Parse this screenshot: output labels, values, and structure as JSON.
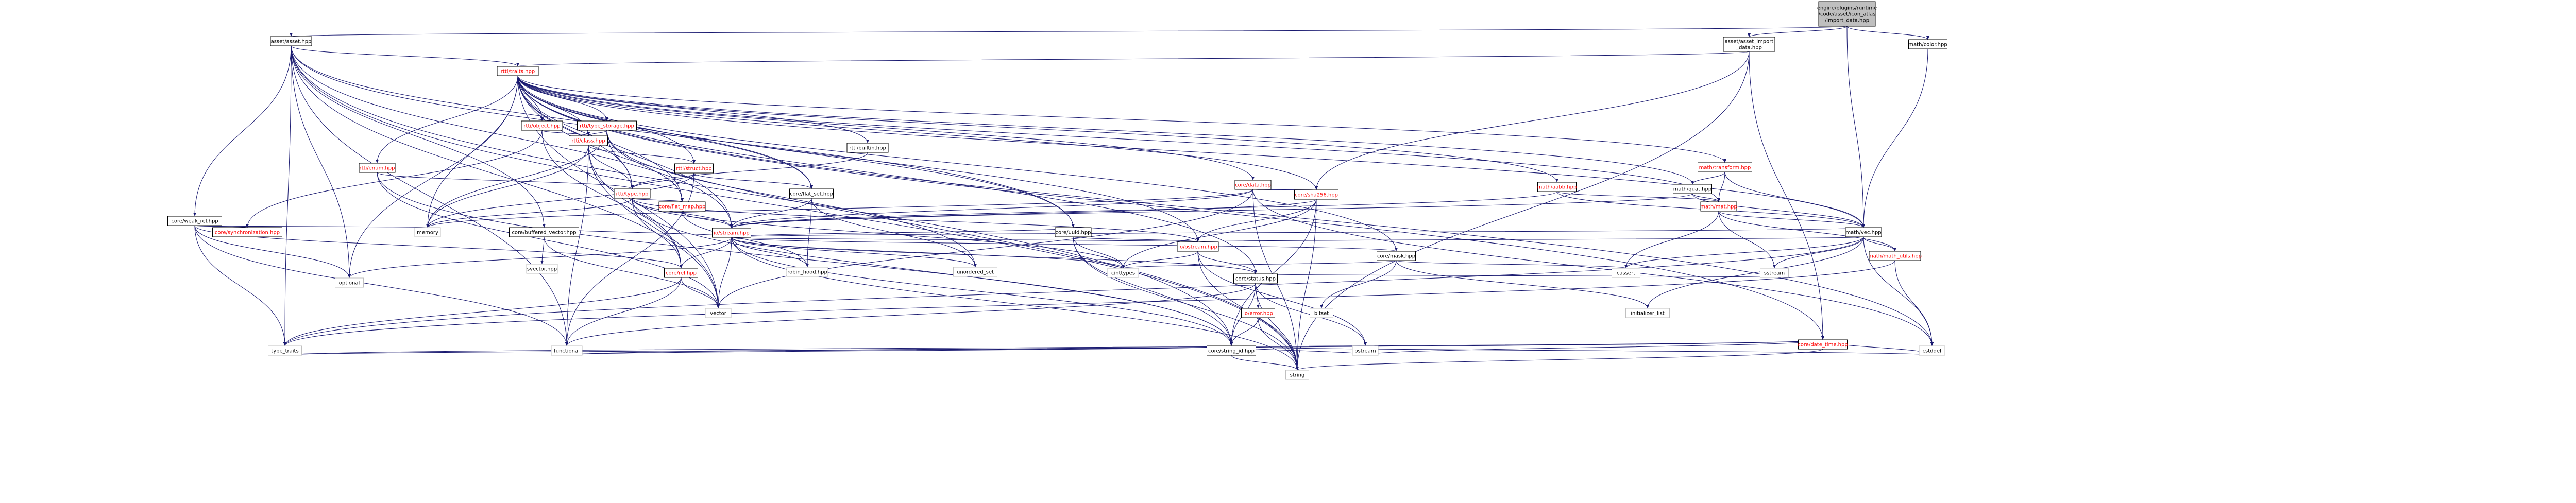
{
  "diagram": {
    "colors": {
      "root_fill": "#bfbfbf",
      "node_fill": "#ffffff",
      "border": "#000000",
      "light_border": "#bfbfbf",
      "edge": "#191970",
      "text": "#000000",
      "link_text": "#ff0000"
    },
    "nodes": [
      {
        "id": "root",
        "lines": [
          "engine/plugins/runtime",
          "/code/asset/icon_atlas",
          "/import_data.hpp"
        ],
        "kind": "root"
      },
      {
        "id": "asset_hpp",
        "lines": [
          "asset/asset.hpp"
        ],
        "kind": "normal"
      },
      {
        "id": "asset_import",
        "lines": [
          "asset/asset_import",
          "_data.hpp"
        ],
        "kind": "normal"
      },
      {
        "id": "math_color",
        "lines": [
          "math/color.hpp"
        ],
        "kind": "normal"
      },
      {
        "id": "rtti_traits",
        "lines": [
          "rtti/traits.hpp"
        ],
        "kind": "red"
      },
      {
        "id": "rtti_object",
        "lines": [
          "rtti/object.hpp"
        ],
        "kind": "red"
      },
      {
        "id": "rtti_type_storage",
        "lines": [
          "rtti/type_storage.hpp"
        ],
        "kind": "red"
      },
      {
        "id": "rtti_class",
        "lines": [
          "rtti/class.hpp"
        ],
        "kind": "red"
      },
      {
        "id": "rtti_builtin",
        "lines": [
          "rtti/builtin.hpp"
        ],
        "kind": "normal"
      },
      {
        "id": "rtti_enum",
        "lines": [
          "rtti/enum.hpp"
        ],
        "kind": "red"
      },
      {
        "id": "rtti_struct",
        "lines": [
          "rtti/struct.hpp"
        ],
        "kind": "red"
      },
      {
        "id": "rtti_type",
        "lines": [
          "rtti/type.hpp"
        ],
        "kind": "red"
      },
      {
        "id": "core_weak_ref",
        "lines": [
          "core/weak_ref.hpp"
        ],
        "kind": "normal"
      },
      {
        "id": "core_sync",
        "lines": [
          "core/synchronization.hpp"
        ],
        "kind": "red"
      },
      {
        "id": "core_buffered_vector",
        "lines": [
          "core/buffered_vector.hpp"
        ],
        "kind": "normal"
      },
      {
        "id": "core_flat_set",
        "lines": [
          "core/flat_set.hpp"
        ],
        "kind": "normal"
      },
      {
        "id": "core_flat_map",
        "lines": [
          "core/flat_map.hpp"
        ],
        "kind": "red"
      },
      {
        "id": "math_vec",
        "lines": [
          "math/vec.hpp"
        ],
        "kind": "normal"
      },
      {
        "id": "math_mat",
        "lines": [
          "math/mat.hpp"
        ],
        "kind": "red"
      },
      {
        "id": "math_quat",
        "lines": [
          "math/quat.hpp"
        ],
        "kind": "normal"
      },
      {
        "id": "math_transform",
        "lines": [
          "math/transform.hpp"
        ],
        "kind": "red"
      },
      {
        "id": "math_aabb",
        "lines": [
          "math/aabb.hpp"
        ],
        "kind": "red"
      },
      {
        "id": "core_data",
        "lines": [
          "core/data.hpp"
        ],
        "kind": "red"
      },
      {
        "id": "core_sha256",
        "lines": [
          "core/sha256.hpp"
        ],
        "kind": "red"
      },
      {
        "id": "core_uuid",
        "lines": [
          "core/uuid.hpp"
        ],
        "kind": "normal"
      },
      {
        "id": "io_stream",
        "lines": [
          "io/stream.hpp"
        ],
        "kind": "red"
      },
      {
        "id": "io_ostream",
        "lines": [
          "io/ostream.hpp"
        ],
        "kind": "red"
      },
      {
        "id": "core_ref",
        "lines": [
          "core/ref.hpp"
        ],
        "kind": "red"
      },
      {
        "id": "core_mask",
        "lines": [
          "core/mask.hpp"
        ],
        "kind": "normal"
      },
      {
        "id": "core_status",
        "lines": [
          "core/status.hpp"
        ],
        "kind": "normal"
      },
      {
        "id": "io_error",
        "lines": [
          "io/error.hpp"
        ],
        "kind": "red"
      },
      {
        "id": "core_string_id",
        "lines": [
          "core/string_id.hpp"
        ],
        "kind": "normal"
      },
      {
        "id": "core_date_time",
        "lines": [
          "core/date_time.hpp"
        ],
        "kind": "red"
      },
      {
        "id": "math_utils",
        "lines": [
          "math/math_utils.hpp"
        ],
        "kind": "red"
      },
      {
        "id": "std_memory",
        "lines": [
          "memory"
        ],
        "kind": "light"
      },
      {
        "id": "std_optional",
        "lines": [
          "optional"
        ],
        "kind": "light"
      },
      {
        "id": "std_svector",
        "lines": [
          "svector.hpp"
        ],
        "kind": "light"
      },
      {
        "id": "std_robin_hood",
        "lines": [
          "robin_hood.hpp"
        ],
        "kind": "light"
      },
      {
        "id": "std_unordered_set",
        "lines": [
          "unordered_set"
        ],
        "kind": "light"
      },
      {
        "id": "std_cinttypes",
        "lines": [
          "cinttypes"
        ],
        "kind": "light"
      },
      {
        "id": "std_vector",
        "lines": [
          "vector"
        ],
        "kind": "light"
      },
      {
        "id": "std_bitset",
        "lines": [
          "bitset"
        ],
        "kind": "light"
      },
      {
        "id": "std_cassert",
        "lines": [
          "cassert"
        ],
        "kind": "light"
      },
      {
        "id": "std_initializer_list",
        "lines": [
          "initializer_list"
        ],
        "kind": "light"
      },
      {
        "id": "std_sstream",
        "lines": [
          "sstream"
        ],
        "kind": "light"
      },
      {
        "id": "std_type_traits",
        "lines": [
          "type_traits"
        ],
        "kind": "light"
      },
      {
        "id": "std_functional",
        "lines": [
          "functional"
        ],
        "kind": "light"
      },
      {
        "id": "std_string",
        "lines": [
          "string"
        ],
        "kind": "light"
      },
      {
        "id": "std_ostream",
        "lines": [
          "ostream"
        ],
        "kind": "light"
      },
      {
        "id": "std_cstddef",
        "lines": [
          "cstddef"
        ],
        "kind": "light"
      }
    ],
    "edges": [
      [
        "root",
        "asset_hpp"
      ],
      [
        "root",
        "asset_import"
      ],
      [
        "root",
        "math_vec"
      ],
      [
        "root",
        "math_color"
      ],
      [
        "asset_hpp",
        "rtti_traits"
      ],
      [
        "asset_hpp",
        "core_weak_ref"
      ],
      [
        "asset_hpp",
        "core_buffered_vector"
      ],
      [
        "asset_hpp",
        "core_uuid"
      ],
      [
        "asset_hpp",
        "io_stream"
      ],
      [
        "asset_hpp",
        "core_string_id"
      ],
      [
        "asset_hpp",
        "std_type_traits"
      ],
      [
        "asset_hpp",
        "std_functional"
      ],
      [
        "asset_hpp",
        "std_string"
      ],
      [
        "asset_hpp",
        "std_vector"
      ],
      [
        "asset_hpp",
        "std_optional"
      ],
      [
        "asset_hpp",
        "core_flat_set"
      ],
      [
        "asset_import",
        "rtti_traits"
      ],
      [
        "asset_import",
        "core_sha256"
      ],
      [
        "asset_import",
        "core_date_time"
      ],
      [
        "asset_import",
        "std_string"
      ],
      [
        "math_color",
        "math_vec"
      ],
      [
        "rtti_traits",
        "rtti_object"
      ],
      [
        "rtti_traits",
        "rtti_type_storage"
      ],
      [
        "rtti_traits",
        "rtti_class"
      ],
      [
        "rtti_traits",
        "rtti_builtin"
      ],
      [
        "rtti_traits",
        "rtti_enum"
      ],
      [
        "rtti_traits",
        "rtti_struct"
      ],
      [
        "rtti_traits",
        "rtti_type"
      ],
      [
        "rtti_traits",
        "math_transform"
      ],
      [
        "rtti_traits",
        "math_aabb"
      ],
      [
        "rtti_traits",
        "math_quat"
      ],
      [
        "rtti_traits",
        "math_mat"
      ],
      [
        "rtti_traits",
        "math_vec"
      ],
      [
        "rtti_traits",
        "core_data"
      ],
      [
        "rtti_traits",
        "core_sha256"
      ],
      [
        "rtti_traits",
        "core_uuid"
      ],
      [
        "rtti_traits",
        "io_stream"
      ],
      [
        "rtti_traits",
        "io_ostream"
      ],
      [
        "rtti_traits",
        "core_flat_map"
      ],
      [
        "rtti_traits",
        "core_flat_set"
      ],
      [
        "rtti_traits",
        "core_mask"
      ],
      [
        "rtti_traits",
        "core_status"
      ],
      [
        "rtti_traits",
        "core_date_time"
      ],
      [
        "rtti_traits",
        "std_optional"
      ],
      [
        "rtti_traits",
        "std_string"
      ],
      [
        "rtti_traits",
        "std_vector"
      ],
      [
        "rtti_traits",
        "std_memory"
      ],
      [
        "rtti_traits",
        "std_cstddef"
      ],
      [
        "rtti_object",
        "rtti_class"
      ],
      [
        "rtti_object",
        "core_ref"
      ],
      [
        "rtti_object",
        "core_sync"
      ],
      [
        "rtti_type_storage",
        "rtti_class"
      ],
      [
        "rtti_type_storage",
        "rtti_type"
      ],
      [
        "rtti_type_storage",
        "core_flat_map"
      ],
      [
        "rtti_type_storage",
        "std_memory"
      ],
      [
        "rtti_type_storage",
        "std_unordered_set"
      ],
      [
        "rtti_class",
        "rtti_struct"
      ],
      [
        "rtti_class",
        "rtti_type"
      ],
      [
        "rtti_class",
        "core_ref"
      ],
      [
        "rtti_class",
        "std_memory"
      ],
      [
        "rtti_class",
        "std_functional"
      ],
      [
        "rtti_class",
        "std_vector"
      ],
      [
        "rtti_builtin",
        "rtti_type"
      ],
      [
        "rtti_enum",
        "rtti_type"
      ],
      [
        "rtti_enum",
        "std_vector"
      ],
      [
        "rtti_enum",
        "core_string_id"
      ],
      [
        "rtti_struct",
        "rtti_type"
      ],
      [
        "rtti_struct",
        "core_flat_set"
      ],
      [
        "rtti_struct",
        "std_memory"
      ],
      [
        "rtti_struct",
        "std_functional"
      ],
      [
        "rtti_type",
        "io_stream"
      ],
      [
        "rtti_type",
        "io_ostream"
      ],
      [
        "rtti_type",
        "core_flat_map"
      ],
      [
        "rtti_type",
        "core_string_id"
      ],
      [
        "rtti_type",
        "core_ref"
      ],
      [
        "rtti_type",
        "std_cinttypes"
      ],
      [
        "rtti_type",
        "std_memory"
      ],
      [
        "core_weak_ref",
        "core_sync"
      ],
      [
        "core_weak_ref",
        "core_ref"
      ],
      [
        "core_weak_ref",
        "std_memory"
      ],
      [
        "core_weak_ref",
        "std_optional"
      ],
      [
        "core_weak_ref",
        "std_functional"
      ],
      [
        "core_weak_ref",
        "std_type_traits"
      ],
      [
        "core_buffered_vector",
        "std_svector"
      ],
      [
        "core_buffered_vector",
        "io_stream"
      ],
      [
        "core_buffered_vector",
        "std_vector"
      ],
      [
        "core_flat_set",
        "io_stream"
      ],
      [
        "core_flat_set",
        "std_robin_hood"
      ],
      [
        "core_flat_set",
        "std_unordered_set"
      ],
      [
        "core_flat_map",
        "std_robin_hood"
      ],
      [
        "core_flat_map",
        "io_stream"
      ],
      [
        "math_vec",
        "math_utils"
      ],
      [
        "math_vec",
        "io_stream"
      ],
      [
        "math_vec",
        "io_ostream"
      ],
      [
        "math_vec",
        "std_cassert"
      ],
      [
        "math_vec",
        "std_sstream"
      ],
      [
        "math_vec",
        "std_cstddef"
      ],
      [
        "math_vec",
        "std_type_traits"
      ],
      [
        "math_vec",
        "std_initializer_list"
      ],
      [
        "math_mat",
        "math_vec"
      ],
      [
        "math_mat",
        "math_utils"
      ],
      [
        "math_mat",
        "std_sstream"
      ],
      [
        "math_mat",
        "std_cassert"
      ],
      [
        "math_quat",
        "math_mat"
      ],
      [
        "math_quat",
        "math_vec"
      ],
      [
        "math_quat",
        "io_stream"
      ],
      [
        "math_transform",
        "math_quat"
      ],
      [
        "math_transform",
        "math_mat"
      ],
      [
        "math_transform",
        "math_vec"
      ],
      [
        "math_aabb",
        "math_vec"
      ],
      [
        "math_aabb",
        "math_mat"
      ],
      [
        "math_aabb",
        "io_stream"
      ],
      [
        "core_data",
        "core_sha256"
      ],
      [
        "core_data",
        "io_stream"
      ],
      [
        "core_data",
        "std_memory"
      ],
      [
        "core_data",
        "std_vector"
      ],
      [
        "core_data",
        "std_cstddef"
      ],
      [
        "core_data",
        "std_string"
      ],
      [
        "core_sha256",
        "io_stream"
      ],
      [
        "core_sha256",
        "io_ostream"
      ],
      [
        "core_sha256",
        "core_string_id"
      ],
      [
        "core_sha256",
        "std_string"
      ],
      [
        "core_sha256",
        "std_cinttypes"
      ],
      [
        "core_uuid",
        "io_stream"
      ],
      [
        "core_uuid",
        "io_ostream"
      ],
      [
        "core_uuid",
        "core_string_id"
      ],
      [
        "core_uuid",
        "std_string"
      ],
      [
        "core_uuid",
        "std_cinttypes"
      ],
      [
        "io_stream",
        "io_ostream"
      ],
      [
        "io_stream",
        "core_ref"
      ],
      [
        "io_stream",
        "core_status"
      ],
      [
        "io_stream",
        "core_mask"
      ],
      [
        "io_stream",
        "core_string_id"
      ],
      [
        "io_stream",
        "std_vector"
      ],
      [
        "io_stream",
        "std_string"
      ],
      [
        "io_stream",
        "std_optional"
      ],
      [
        "io_stream",
        "std_cinttypes"
      ],
      [
        "io_stream",
        "std_unordered_set"
      ],
      [
        "io_stream",
        "std_robin_hood"
      ],
      [
        "io_ostream",
        "core_status"
      ],
      [
        "io_ostream",
        "std_cinttypes"
      ],
      [
        "io_ostream",
        "std_string"
      ],
      [
        "io_ostream",
        "std_ostream"
      ],
      [
        "core_ref",
        "std_type_traits"
      ],
      [
        "core_ref",
        "std_functional"
      ],
      [
        "core_ref",
        "std_vector"
      ],
      [
        "core_mask",
        "std_bitset"
      ],
      [
        "core_mask",
        "std_cassert"
      ],
      [
        "core_mask",
        "std_initializer_list"
      ],
      [
        "core_mask",
        "std_cinttypes"
      ],
      [
        "core_status",
        "io_error"
      ],
      [
        "core_status",
        "core_string_id"
      ],
      [
        "core_status",
        "std_string"
      ],
      [
        "core_status",
        "std_ostream"
      ],
      [
        "core_status",
        "std_sstream"
      ],
      [
        "core_status",
        "std_functional"
      ],
      [
        "io_error",
        "core_string_id"
      ],
      [
        "io_error",
        "std_string"
      ],
      [
        "core_string_id",
        "std_string"
      ],
      [
        "core_string_id",
        "std_functional"
      ],
      [
        "core_string_id",
        "std_cstddef"
      ],
      [
        "core_string_id",
        "std_ostream"
      ],
      [
        "core_string_id",
        "std_type_traits"
      ],
      [
        "core_date_time",
        "std_string"
      ],
      [
        "core_date_time",
        "std_ostream"
      ],
      [
        "core_date_time",
        "std_cstddef"
      ],
      [
        "core_date_time",
        "std_functional"
      ],
      [
        "core_date_time",
        "std_type_traits"
      ],
      [
        "math_utils",
        "std_cstddef"
      ],
      [
        "math_utils",
        "std_type_traits"
      ]
    ]
  }
}
